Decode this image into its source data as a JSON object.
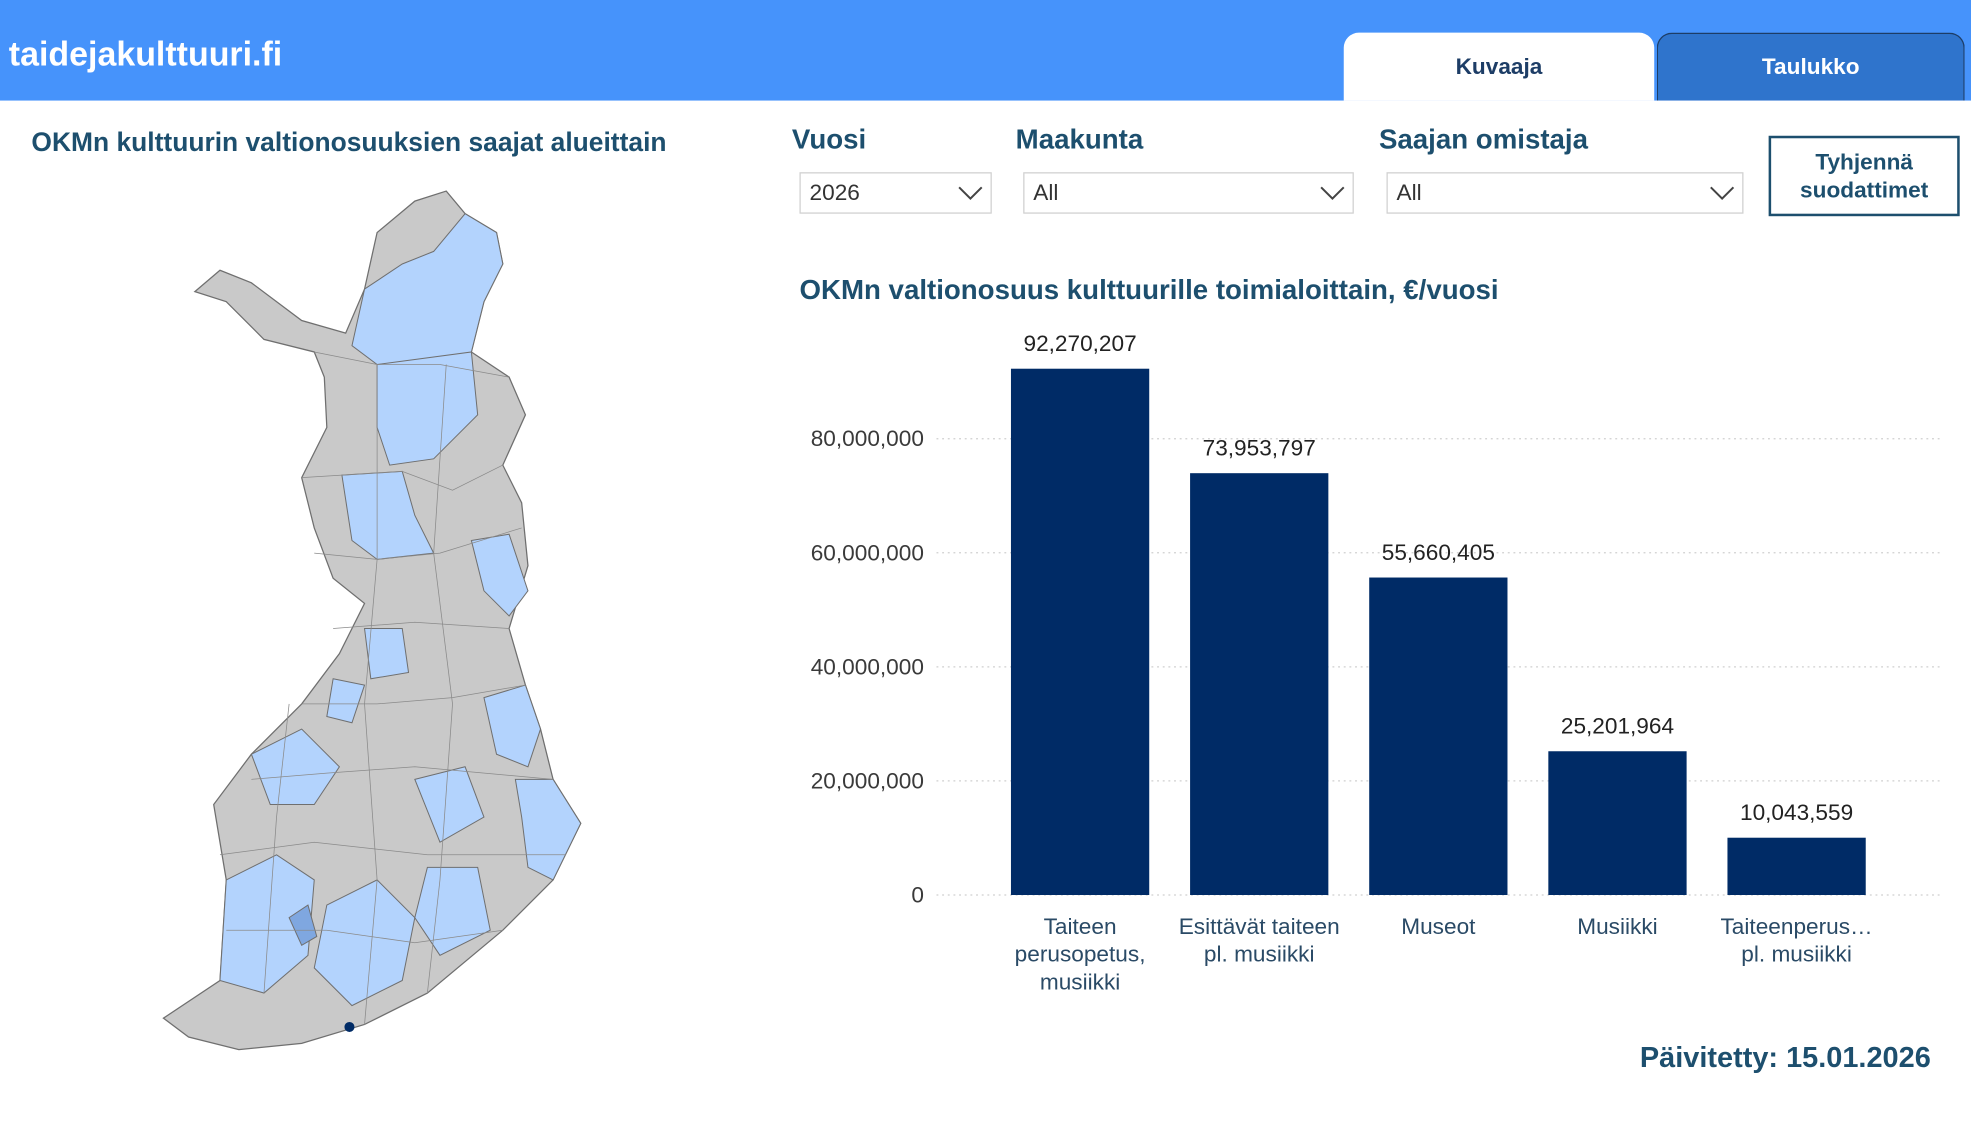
{
  "header": {
    "site": "taidejakulttuuri.fi",
    "tabs": [
      "Kuvaaja",
      "Taulukko"
    ]
  },
  "map_title": "OKMn kulttuurin valtionosuuksien saajat alueittain",
  "filters": [
    {
      "label": "Vuosi",
      "value": "2026"
    },
    {
      "label": "Maakunta",
      "value": "All"
    },
    {
      "label": "Saajan omistaja",
      "value": "All"
    }
  ],
  "clear_button": "Tyhjennä suodattimet",
  "updated": "Päivitetty: 15.01.2026",
  "chart_data": {
    "type": "bar",
    "title": "OKMn valtionosuus kulttuurille toimialoittain, €/vuosi",
    "categories": [
      "Taiteen perusopetus, musiikki",
      "Esittävät taiteen pl. musiikki",
      "Museot",
      "Musiikki",
      "Taiteenperus… pl. musiikki"
    ],
    "values": [
      92270207,
      73953797,
      55660405,
      25201964,
      10043559
    ],
    "value_labels": [
      "92,270,207",
      "73,953,797",
      "55,660,405",
      "25,201,964",
      "10,043,559"
    ],
    "color": "#002b66",
    "ylim": [
      0,
      100000000
    ],
    "yticks": [
      0,
      {
        "value": 20000000,
        "label": "20,000,000"
      },
      {
        "value": 40000000,
        "label": "40,000,000"
      },
      {
        "value": 60000000,
        "label": "60,000,000"
      },
      {
        "value": 80000000,
        "label": "80,000,000"
      }
    ],
    "grid": true
  }
}
